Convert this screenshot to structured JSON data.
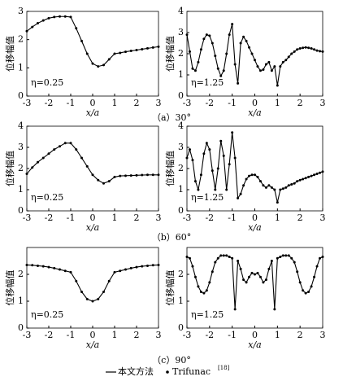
{
  "chart_data": [
    {
      "type": "line",
      "ylabel": "位移幅值",
      "xlabel": "x/a",
      "annotation": "η=0.25",
      "color": "#000000",
      "xlim": [
        -3,
        3
      ],
      "xticks": [
        -3,
        -2,
        -1,
        0,
        1,
        2,
        3
      ],
      "ylim": [
        0,
        3
      ],
      "yticks": [
        0,
        1,
        2,
        3
      ],
      "x": [
        -3,
        -2.75,
        -2.5,
        -2.25,
        -2,
        -1.75,
        -1.5,
        -1.25,
        -1,
        -0.75,
        -0.5,
        -0.25,
        0,
        0.25,
        0.5,
        0.75,
        1,
        1.25,
        1.5,
        1.75,
        2,
        2.25,
        2.5,
        2.75,
        3
      ],
      "values": [
        2.3,
        2.45,
        2.58,
        2.68,
        2.76,
        2.8,
        2.82,
        2.82,
        2.8,
        2.4,
        1.95,
        1.5,
        1.15,
        1.05,
        1.1,
        1.3,
        1.5,
        1.53,
        1.57,
        1.6,
        1.63,
        1.66,
        1.69,
        1.72,
        1.75
      ]
    },
    {
      "type": "line",
      "ylabel": "位移幅值",
      "xlabel": "x/a",
      "annotation": "η=1.25",
      "color": "#000000",
      "xlim": [
        -3,
        3
      ],
      "xticks": [
        -3,
        -2,
        -1,
        0,
        1,
        2,
        3
      ],
      "ylim": [
        0,
        4
      ],
      "yticks": [
        0,
        1,
        2,
        3,
        4
      ],
      "x": [
        -3,
        -2.875,
        -2.75,
        -2.625,
        -2.5,
        -2.375,
        -2.25,
        -2.125,
        -2,
        -1.875,
        -1.75,
        -1.625,
        -1.5,
        -1.375,
        -1.25,
        -1.125,
        -1,
        -0.875,
        -0.75,
        -0.625,
        -0.5,
        -0.375,
        -0.25,
        -0.125,
        0,
        0.125,
        0.25,
        0.375,
        0.5,
        0.625,
        0.75,
        0.875,
        1,
        1.125,
        1.25,
        1.375,
        1.5,
        1.625,
        1.75,
        1.875,
        2,
        2.125,
        2.25,
        2.375,
        2.5,
        2.625,
        2.75,
        2.875,
        3
      ],
      "values": [
        2.9,
        2.1,
        1.3,
        1.2,
        1.6,
        2.2,
        2.7,
        2.9,
        2.85,
        2.5,
        1.9,
        1.3,
        0.95,
        1.2,
        2.0,
        2.9,
        3.4,
        1.5,
        0.6,
        2.5,
        2.8,
        2.6,
        2.3,
        2.0,
        1.7,
        1.4,
        1.2,
        1.25,
        1.5,
        1.6,
        1.2,
        1.4,
        0.5,
        1.4,
        1.6,
        1.7,
        1.85,
        2.0,
        2.1,
        2.2,
        2.25,
        2.28,
        2.3,
        2.28,
        2.25,
        2.2,
        2.15,
        2.12,
        2.1
      ]
    },
    {
      "type": "line",
      "ylabel": "位移幅值",
      "xlabel": "x/a",
      "annotation": "η=0.25",
      "color": "#000000",
      "xlim": [
        -3,
        3
      ],
      "xticks": [
        -3,
        -2,
        -1,
        0,
        1,
        2,
        3
      ],
      "ylim": [
        0,
        4
      ],
      "yticks": [
        0,
        1,
        2,
        3,
        4
      ],
      "x": [
        -3,
        -2.75,
        -2.5,
        -2.25,
        -2,
        -1.75,
        -1.5,
        -1.25,
        -1,
        -0.75,
        -0.5,
        -0.25,
        0,
        0.25,
        0.5,
        0.75,
        1,
        1.25,
        1.5,
        1.75,
        2,
        2.25,
        2.5,
        2.75,
        3
      ],
      "values": [
        1.75,
        2.05,
        2.3,
        2.5,
        2.7,
        2.9,
        3.05,
        3.2,
        3.2,
        2.9,
        2.5,
        2.1,
        1.7,
        1.45,
        1.3,
        1.4,
        1.6,
        1.65,
        1.66,
        1.67,
        1.68,
        1.69,
        1.7,
        1.7,
        1.7
      ]
    },
    {
      "type": "line",
      "ylabel": "位移幅值",
      "xlabel": "x/a",
      "annotation": "η=1.25",
      "color": "#000000",
      "xlim": [
        -3,
        3
      ],
      "xticks": [
        -3,
        -2,
        -1,
        0,
        1,
        2,
        3
      ],
      "ylim": [
        0,
        4
      ],
      "yticks": [
        0,
        1,
        2,
        3,
        4
      ],
      "x": [
        -3,
        -2.875,
        -2.75,
        -2.625,
        -2.5,
        -2.375,
        -2.25,
        -2.125,
        -2,
        -1.875,
        -1.75,
        -1.625,
        -1.5,
        -1.375,
        -1.25,
        -1.125,
        -1,
        -0.875,
        -0.75,
        -0.625,
        -0.5,
        -0.375,
        -0.25,
        -0.125,
        0,
        0.125,
        0.25,
        0.375,
        0.5,
        0.625,
        0.75,
        0.875,
        1,
        1.125,
        1.25,
        1.375,
        1.5,
        1.625,
        1.75,
        1.875,
        2,
        2.125,
        2.25,
        2.375,
        2.5,
        2.625,
        2.75,
        2.875,
        3
      ],
      "values": [
        2.5,
        2.9,
        2.4,
        1.4,
        1.0,
        1.7,
        2.7,
        3.2,
        2.9,
        1.9,
        1.0,
        2.0,
        3.3,
        2.6,
        1.0,
        2.2,
        3.7,
        2.5,
        0.6,
        0.8,
        1.2,
        1.5,
        1.65,
        1.7,
        1.7,
        1.6,
        1.4,
        1.2,
        1.1,
        1.2,
        1.1,
        1.0,
        0.4,
        1.0,
        1.05,
        1.1,
        1.2,
        1.25,
        1.3,
        1.4,
        1.45,
        1.5,
        1.55,
        1.6,
        1.65,
        1.7,
        1.75,
        1.8,
        1.85
      ]
    },
    {
      "type": "line",
      "ylabel": "位移幅值",
      "xlabel": "x/a",
      "annotation": "η=0.25",
      "color": "#000000",
      "xlim": [
        -3,
        3
      ],
      "xticks": [
        -3,
        -2,
        -1,
        0,
        1,
        2,
        3
      ],
      "ylim": [
        0,
        3
      ],
      "yticks": [
        0,
        1,
        2
      ],
      "x": [
        -3,
        -2.75,
        -2.5,
        -2.25,
        -2,
        -1.75,
        -1.5,
        -1.25,
        -1,
        -0.75,
        -0.5,
        -0.25,
        0,
        0.25,
        0.5,
        0.75,
        1,
        1.25,
        1.5,
        1.75,
        2,
        2.25,
        2.5,
        2.75,
        3
      ],
      "values": [
        2.35,
        2.34,
        2.32,
        2.3,
        2.27,
        2.23,
        2.18,
        2.13,
        2.08,
        1.75,
        1.35,
        1.08,
        1.0,
        1.08,
        1.35,
        1.75,
        2.08,
        2.13,
        2.18,
        2.23,
        2.27,
        2.3,
        2.32,
        2.34,
        2.35
      ]
    },
    {
      "type": "line",
      "ylabel": "位移幅值",
      "xlabel": "x/a",
      "annotation": "η=1.25",
      "color": "#000000",
      "xlim": [
        -3,
        3
      ],
      "xticks": [
        -3,
        -2,
        -1,
        0,
        1,
        2,
        3
      ],
      "ylim": [
        0,
        3
      ],
      "yticks": [
        0,
        1,
        2
      ],
      "x": [
        -3,
        -2.875,
        -2.75,
        -2.625,
        -2.5,
        -2.375,
        -2.25,
        -2.125,
        -2,
        -1.875,
        -1.75,
        -1.625,
        -1.5,
        -1.375,
        -1.25,
        -1.125,
        -1,
        -0.875,
        -0.75,
        -0.625,
        -0.5,
        -0.375,
        -0.25,
        -0.125,
        0,
        0.125,
        0.25,
        0.375,
        0.5,
        0.625,
        0.75,
        0.875,
        1,
        1.125,
        1.25,
        1.375,
        1.5,
        1.625,
        1.75,
        1.875,
        2,
        2.125,
        2.25,
        2.375,
        2.5,
        2.625,
        2.75,
        2.875,
        3
      ],
      "values": [
        2.65,
        2.6,
        2.3,
        1.9,
        1.55,
        1.35,
        1.3,
        1.4,
        1.7,
        2.1,
        2.45,
        2.6,
        2.7,
        2.7,
        2.7,
        2.65,
        2.6,
        0.7,
        2.5,
        2.2,
        1.8,
        1.7,
        1.9,
        2.05,
        2.0,
        2.05,
        1.9,
        1.7,
        1.8,
        2.2,
        2.5,
        0.7,
        2.6,
        2.65,
        2.7,
        2.7,
        2.7,
        2.6,
        2.45,
        2.1,
        1.7,
        1.4,
        1.3,
        1.35,
        1.55,
        1.9,
        2.3,
        2.6,
        2.65
      ]
    }
  ],
  "captions": [
    "（a）30°",
    "（b）60°",
    "（c）90°"
  ],
  "legend": [
    {
      "name": "本文方法"
    },
    {
      "name": "Trifunac",
      "ref": "[18]"
    }
  ]
}
